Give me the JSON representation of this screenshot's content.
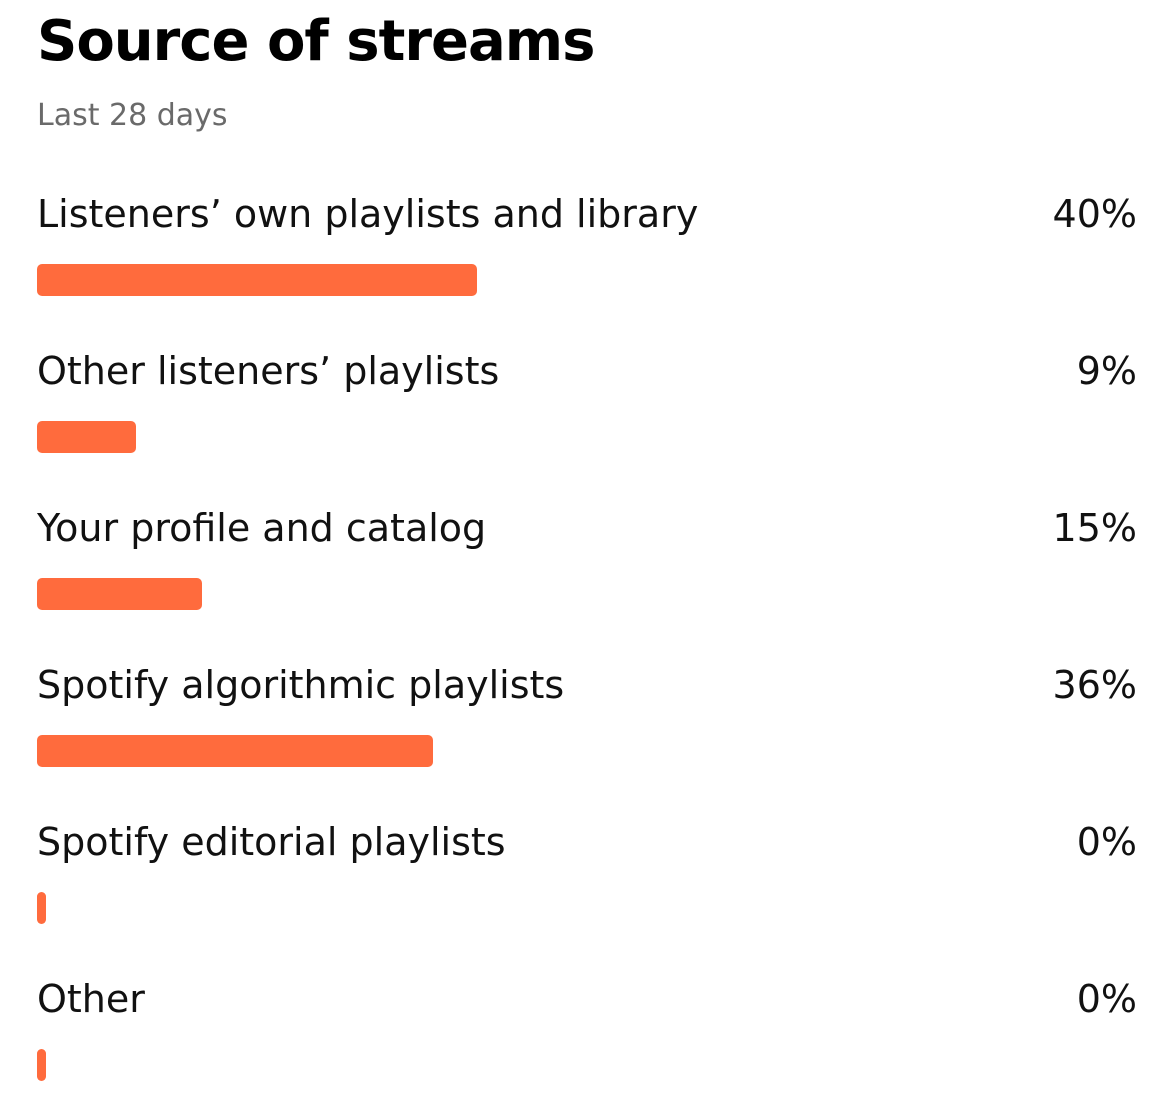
{
  "header": {
    "title": "Source of streams",
    "subtitle": "Last 28 days"
  },
  "colors": {
    "bar": "#ff6b3d",
    "text": "#111111",
    "muted": "#6a6a6a"
  },
  "chart_data": {
    "type": "bar",
    "orientation": "horizontal",
    "title": "Source of streams",
    "subtitle": "Last 28 days",
    "xlim": [
      0,
      100
    ],
    "categories": [
      "Listeners’ own playlists and library",
      "Other listeners’ playlists",
      "Your profile and catalog",
      "Spotify algorithmic playlists",
      "Spotify editorial playlists",
      "Other"
    ],
    "values": [
      40,
      9,
      15,
      36,
      0,
      0
    ],
    "value_labels": [
      "40%",
      "9%",
      "15%",
      "36%",
      "0%",
      "0%"
    ]
  }
}
